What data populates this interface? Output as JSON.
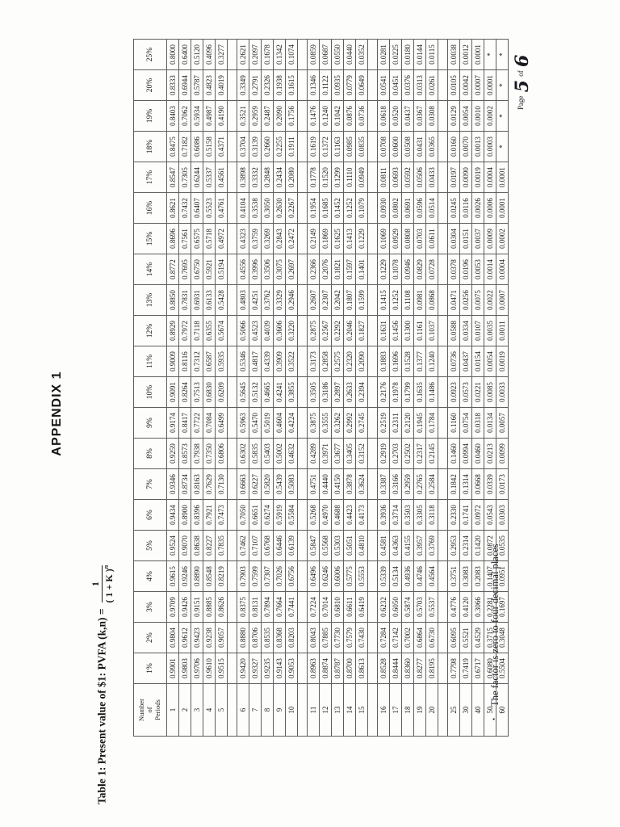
{
  "page": {
    "title": "APPENDIX 1",
    "caption": "Table 1: Present value of $1: PVFA (k,n) =",
    "formula": {
      "numerator": "1",
      "denominator": "( 1 + K )",
      "exponent": "n"
    },
    "note_bullet": "•",
    "note": "The factor is zero to four decimal places",
    "footer": {
      "word_page": "Page",
      "page_number": "5",
      "word_of": "of",
      "total_pages": "6"
    }
  },
  "table": {
    "corner_header_lines": [
      "Number",
      "of",
      "Periods"
    ],
    "rate_headers": [
      "1%",
      "2%",
      "3%",
      "4%",
      "5%",
      "6%",
      "7%",
      "8%",
      "9%",
      "10%",
      "11%",
      "12%",
      "13%",
      "14%",
      "15%",
      "16%",
      "17%",
      "18%",
      "19%",
      "20%",
      "25%"
    ],
    "group_breaks_after_index": [
      4,
      9,
      14,
      19
    ],
    "rows": [
      {
        "period": "1",
        "values": [
          "0.9901",
          "0.9804",
          "0.9709",
          "0.9615",
          "0.9524",
          "0.9434",
          "0.9346",
          "0.9259",
          "0.9174",
          "0.9091",
          "0.9009",
          "0.8929",
          "0.8850",
          "0.8772",
          "0.8696",
          "0.8621",
          "0.8547",
          "0.8475",
          "0.8403",
          "0.8333",
          "0.8000"
        ]
      },
      {
        "period": "2",
        "values": [
          "0.9803",
          "0.9612",
          "0.9426",
          "0.9246",
          "0.9070",
          "0.8900",
          "0.8734",
          "0.8573",
          "0.8417",
          "0.8264",
          "0.8116",
          "0.7972",
          "0.7831",
          "0.7695",
          "0.7561",
          "0.7432",
          "0.7305",
          "0.7182",
          "0.7062",
          "0.6944",
          "0.6400"
        ]
      },
      {
        "period": "3",
        "values": [
          "0.9706",
          "0.9423",
          "0.9151",
          "0.8890",
          "0.8638",
          "0.8396",
          "0.8163",
          "0.7938",
          "0.7722",
          "0.7513",
          "0.7312",
          "0.7118",
          "0.6931",
          "0.6750",
          "0.6575",
          "0.6407",
          "0.6244",
          "0.6086",
          "0.5934",
          "0.5787",
          "0.5120"
        ]
      },
      {
        "period": "4",
        "values": [
          "0.9610",
          "0.9238",
          "0.8885",
          "0.8548",
          "0.8227",
          "0.7921",
          "0.7629",
          "0.7350",
          "0.7084",
          "0.6830",
          "0.6587",
          "0.6355",
          "0.6133",
          "0.5921",
          "0.5718",
          "0.5523",
          "0.5337",
          "0.5158",
          "0.4987",
          "0.4823",
          "0.4096"
        ]
      },
      {
        "period": "5",
        "values": [
          "0.9515",
          "0.9057",
          "0.8626",
          "0.8219",
          "0.7835",
          "0.7473",
          "0.7130",
          "0.6806",
          "0.6499",
          "0.6209",
          "0.5935",
          "0.5674",
          "0.5428",
          "0.5194",
          "0.4972",
          "0.4761",
          "0.4561",
          "0.4371",
          "0.4190",
          "0.4019",
          "0.3277"
        ]
      },
      {
        "period": "6",
        "values": [
          "0.9420",
          "0.8880",
          "0.8375",
          "0.7903",
          "0.7462",
          "0.7050",
          "0.6663",
          "0.6302",
          "0.5963",
          "0.5645",
          "0.5346",
          "0.5066",
          "0.4803",
          "0.4556",
          "0.4323",
          "0.4104",
          "0.3898",
          "0.3704",
          "0.3521",
          "0.3349",
          "0.2621"
        ]
      },
      {
        "period": "7",
        "values": [
          "0.9327",
          "0.8706",
          "0.8131",
          "0.7599",
          "0.7107",
          "0.6651",
          "0.6227",
          "0.5835",
          "0.5470",
          "0.5132",
          "0.4817",
          "0.4523",
          "0.4251",
          "0.3996",
          "0.3759",
          "0.3538",
          "0.3332",
          "0.3139",
          "0.2959",
          "0.2791",
          "0.2097"
        ]
      },
      {
        "period": "8",
        "values": [
          "0.9235",
          "0.8535",
          "0.7894",
          "0.7307",
          "0.6768",
          "0.6274",
          "0.5820",
          "0.5403",
          "0.5019",
          "0.4665",
          "0.4339",
          "0.4039",
          "0.3762",
          "0.3506",
          "0.3269",
          "0.3050",
          "0.2848",
          "0.2660",
          "0.2487",
          "0.2326",
          "0.1678"
        ]
      },
      {
        "period": "9",
        "values": [
          "0.9143",
          "0.8368",
          "0.7664",
          "0.7026",
          "0.6446",
          "0.5919",
          "0.5439",
          "0.5002",
          "0.4604",
          "0.4241",
          "0.3909",
          "0.3606",
          "0.3329",
          "0.3075",
          "0.2843",
          "0.2630",
          "0.2434",
          "0.2255",
          "0.2090",
          "0.1938",
          "0.1342"
        ]
      },
      {
        "period": "10",
        "values": [
          "0.9053",
          "0.8203",
          "0.7441",
          "0.6756",
          "0.6139",
          "0.5584",
          "0.5083",
          "0.4632",
          "0.4224",
          "0.3855",
          "0.3522",
          "0.3220",
          "0.2946",
          "0.2697",
          "0.2472",
          "0.2267",
          "0.2080",
          "0.1911",
          "0.1756",
          "0.1615",
          "0.1074"
        ]
      },
      {
        "period": "11",
        "values": [
          "0.8963",
          "0.8043",
          "0.7224",
          "0.6496",
          "0.5847",
          "0.5268",
          "0.4751",
          "0.4289",
          "0.3875",
          "0.3505",
          "0.3173",
          "0.2875",
          "0.2607",
          "0.2366",
          "0.2149",
          "0.1954",
          "0.1778",
          "0.1619",
          "0.1476",
          "0.1346",
          "0.0859"
        ]
      },
      {
        "period": "12",
        "values": [
          "0.8874",
          "0.7885",
          "0.7014",
          "0.6246",
          "0.5568",
          "0.4970",
          "0.4440",
          "0.3971",
          "0.3555",
          "0.3186",
          "0.2858",
          "0.2567",
          "0.2307",
          "0.2076",
          "0.1869",
          "0.1685",
          "0.1520",
          "0.1372",
          "0.1240",
          "0.1122",
          "0.0687"
        ]
      },
      {
        "period": "13",
        "values": [
          "0.8787",
          "0.7730",
          "0.6810",
          "0.6006",
          "0.5303",
          "0.4688",
          "0.4150",
          "0.3677",
          "0.3262",
          "0.2897",
          "0.2575",
          "0.2292",
          "0.2042",
          "0.1821",
          "0.1625",
          "0.1452",
          "0.1299",
          "0.1163",
          "0.1042",
          "0.0935",
          "0.0550"
        ]
      },
      {
        "period": "14",
        "values": [
          "0.8700",
          "0.7579",
          "0.6611",
          "0.5775",
          "0.5051",
          "0.4423",
          "0.3878",
          "0.3405",
          "0.2992",
          "0.2633",
          "0.2320",
          "0.2046",
          "0.1807",
          "0.1597",
          "0.1413",
          "0.1252",
          "0.1110",
          "0.0985",
          "0.0876",
          "0.0779",
          "0.0440"
        ]
      },
      {
        "period": "15",
        "values": [
          "0.8613",
          "0.7430",
          "0.6419",
          "0.5553",
          "0.4810",
          "0.4173",
          "0.3624",
          "0.3152",
          "0.2745",
          "0.2394",
          "0.2090",
          "0.1827",
          "0.1599",
          "0.1401",
          "0.1229",
          "0.1079",
          "0.0949",
          "0.0835",
          "0.0736",
          "0.0649",
          "0.0352"
        ]
      },
      {
        "period": "16",
        "values": [
          "0.8528",
          "0.7284",
          "0.6232",
          "0.5339",
          "0.4581",
          "0.3936",
          "0.3387",
          "0.2919",
          "0.2519",
          "0.2176",
          "0.1883",
          "0.1631",
          "0.1415",
          "0.1229",
          "0.1069",
          "0.0930",
          "0.0811",
          "0.0708",
          "0.0618",
          "0.0541",
          "0.0281"
        ]
      },
      {
        "period": "17",
        "values": [
          "0.8444",
          "0.7142",
          "0.6050",
          "0.5134",
          "0.4363",
          "0.3714",
          "0.3166",
          "0.2703",
          "0.2311",
          "0.1978",
          "0.1696",
          "0.1456",
          "0.1252",
          "0.1078",
          "0.0929",
          "0.0802",
          "0.0693",
          "0.0600",
          "0.0520",
          "0.0451",
          "0.0225"
        ]
      },
      {
        "period": "18",
        "values": [
          "0.8360",
          "0.7002",
          "0.5874",
          "0.4936",
          "0.4155",
          "0.3503",
          "0.2959",
          "0.2502",
          "0.2120",
          "0.1799",
          "0.1528",
          "0.1300",
          "0.1108",
          "0.0946",
          "0.0808",
          "0.0691",
          "0.0592",
          "0.0508",
          "0.0437",
          "0.0376",
          "0.0180"
        ]
      },
      {
        "period": "19",
        "values": [
          "0.8277",
          "0.6864",
          "0.5703",
          "0.4746",
          "0.3957",
          "0.3305",
          "0.2765",
          "0.2317",
          "0.1945",
          "0.1635",
          "0.1377",
          "0.1161",
          "0.0981",
          "0.0829",
          "0.0703",
          "0.0596",
          "0.0506",
          "0.0431",
          "0.0367",
          "0.0313",
          "0.0144"
        ]
      },
      {
        "period": "20",
        "values": [
          "0.8195",
          "0.6730",
          "0.5537",
          "0.4564",
          "0.3769",
          "0.3118",
          "0.2584",
          "0.2145",
          "0.1784",
          "0.1486",
          "0.1240",
          "0.1037",
          "0.0868",
          "0.0728",
          "0.0611",
          "0.0514",
          "0.0433",
          "0.0365",
          "0.0308",
          "0.0261",
          "0.0115"
        ]
      },
      {
        "period": "25",
        "values": [
          "0.7798",
          "0.6095",
          "0.4776",
          "0.3751",
          "0.2953",
          "0.2330",
          "0.1842",
          "0.1460",
          "0.1160",
          "0.0923",
          "0.0736",
          "0.0588",
          "0.0471",
          "0.0378",
          "0.0304",
          "0.0245",
          "0.0197",
          "0.0160",
          "0.0129",
          "0.0105",
          "0.0038"
        ]
      },
      {
        "period": "30",
        "values": [
          "0.7419",
          "0.5521",
          "0.4120",
          "0.3083",
          "0.2314",
          "0.1741",
          "0.1314",
          "0.0994",
          "0.0754",
          "0.0573",
          "0.0437",
          "0.0334",
          "0.0256",
          "0.0196",
          "0.0151",
          "0.0116",
          "0.0090",
          "0.0070",
          "0.0054",
          "0.0042",
          "0.0012"
        ]
      },
      {
        "period": "40",
        "values": [
          "0.6717",
          "0.4529",
          "0.3066",
          "0.2083",
          "0.1420",
          "0.0972",
          "0.0668",
          "0.0460",
          "0.0318",
          "0.0221",
          "0.0154",
          "0.0107",
          "0.0075",
          "0.0053",
          "0.0037",
          "0.0026",
          "0.0019",
          "0.0013",
          "0.0010",
          "0.0007",
          "0.0001"
        ]
      },
      {
        "period": "50",
        "values": [
          "0.6080",
          "0.3715",
          "0.2281",
          "0.1407",
          "0.0872",
          "0.0543",
          "0.0339",
          "0.0213",
          "0.0134",
          "0.0085",
          "0.0054",
          "0.0035",
          "0.0022",
          "0.0014",
          "0.0009",
          "0.0006",
          "0.0004",
          "0.0003",
          "0.0002",
          "0.0001",
          "*"
        ]
      },
      {
        "period": "60",
        "values": [
          "0.5504",
          "0.3048",
          "0.1697",
          "0.0951",
          "0.0535",
          "0.0303",
          "0.0173",
          "0.0099",
          "0.0057",
          "0.0033",
          "0.0019",
          "0.0011",
          "0.0007",
          "0.0004",
          "0.0002",
          "0.0001",
          "0.0001",
          "*",
          "*",
          "*",
          "*"
        ]
      }
    ]
  }
}
